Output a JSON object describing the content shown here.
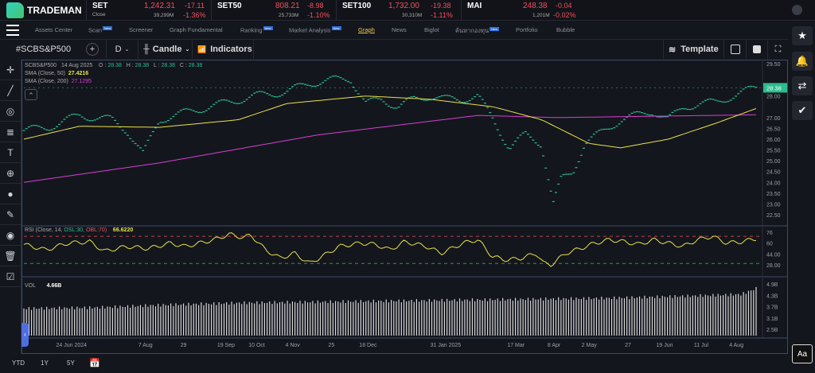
{
  "app": {
    "name": "TRADEMAN"
  },
  "tickers": [
    {
      "name": "SET",
      "sub": "Close",
      "price": "1,242.31",
      "change": "-17.11",
      "volume": "39,299M",
      "pct": "-1.36%"
    },
    {
      "name": "SET50",
      "price": "808.21",
      "change": "-8.98",
      "volume": "25,733M",
      "pct": "-1.10%"
    },
    {
      "name": "SET100",
      "price": "1,732.00",
      "change": "-19.38",
      "volume": "30,310M",
      "pct": "-1.11%"
    },
    {
      "name": "MAI",
      "price": "248.38",
      "change": "-0.04",
      "volume": "1,201M",
      "pct": "-0.02%"
    }
  ],
  "nav": [
    {
      "label": "Assets Center"
    },
    {
      "label": "Scan",
      "badge": "New"
    },
    {
      "label": "Screener"
    },
    {
      "label": "Graph Fundamental"
    },
    {
      "label": "Ranking",
      "badge": "New"
    },
    {
      "label": "Market Analysis",
      "badge": "New"
    },
    {
      "label": "Graph",
      "active": true
    },
    {
      "label": "News"
    },
    {
      "label": "Biglot"
    },
    {
      "label": "ค้นหากองทุน",
      "badge": "New"
    },
    {
      "label": "Portfolio"
    },
    {
      "label": "Bubble"
    }
  ],
  "toolbar": {
    "symbol": "#SCBS&P500",
    "interval": "D",
    "chart_type": "Candle",
    "indicators": "Indicators",
    "template": "Template"
  },
  "legend": {
    "symbol": "SCBS&P500",
    "date": "14 Aug 2025",
    "o_label": "O :",
    "o": "28.38",
    "h_label": "H :",
    "h": "28.38",
    "l_label": "L :",
    "l": "28.38",
    "c_label": "C :",
    "c": "28.38",
    "sma50_label": "SMA  (Close, 50)",
    "sma50": "27.4216",
    "sma200_label": "SMA  (Close, 200)",
    "sma200": "27.1295",
    "rsi_label": "RSI  (Close, 14,",
    "rsi_osl": "OSL:30,",
    "rsi_obl": "OBL:70)",
    "rsi": "66.6220",
    "vol_label": "VOL",
    "vol": "4.66B"
  },
  "bottom": {
    "ranges": [
      "YTD",
      "1Y",
      "5Y"
    ]
  },
  "colors": {
    "price": "#2bbd8f",
    "sma50": "#e8e24a",
    "sma200": "#d63fd0",
    "rsi": "#e8e24a",
    "up": "#2bbd8f",
    "down": "#f0505e"
  },
  "chart_data": {
    "type": "line",
    "price_axis": {
      "ticks": [
        "29.50",
        "28.00",
        "27.00",
        "26.50",
        "26.00",
        "25.50",
        "25.00",
        "24.50",
        "24.00",
        "23.50",
        "23.00",
        "22.50"
      ],
      "range": [
        22.5,
        29.5
      ],
      "last": "28.38"
    },
    "rsi_axis": {
      "ticks": [
        "76",
        "60",
        "44.00",
        "28.00"
      ],
      "range": [
        20,
        80
      ],
      "ob": 70,
      "os": 30
    },
    "vol_axis": {
      "ticks": [
        "4.9B",
        "4.3B",
        "3.7B",
        "3.1B",
        "2.5B"
      ],
      "range": [
        2.2,
        5.0
      ]
    },
    "x_ticks": [
      {
        "t": 6.5,
        "label": "24 Jun 2024"
      },
      {
        "t": 16.6,
        "label": "7 Aug"
      },
      {
        "t": 21.8,
        "label": "29"
      },
      {
        "t": 27.6,
        "label": "19 Sep"
      },
      {
        "t": 31.8,
        "label": "10 Oct"
      },
      {
        "t": 36.7,
        "label": "4 Nov"
      },
      {
        "t": 42,
        "label": "25"
      },
      {
        "t": 47,
        "label": "18 Dec"
      },
      {
        "t": 57.6,
        "label": "31 Jan 2025"
      },
      {
        "t": 67.2,
        "label": "17 Mar"
      },
      {
        "t": 72.4,
        "label": "8 Apr"
      },
      {
        "t": 77.2,
        "label": "2 May"
      },
      {
        "t": 82.5,
        "label": "27"
      },
      {
        "t": 87.5,
        "label": "19 Jun"
      },
      {
        "t": 92.5,
        "label": "11 Jul"
      },
      {
        "t": 97.3,
        "label": "4 Aug"
      }
    ],
    "close": [
      [
        0,
        26.4
      ],
      [
        3.3,
        26.55
      ],
      [
        7.6,
        27.1
      ],
      [
        12,
        26.9
      ],
      [
        14.1,
        26.4
      ],
      [
        16.3,
        25.3
      ],
      [
        18.5,
        26.9
      ],
      [
        22.8,
        27.3
      ],
      [
        27.2,
        27.65
      ],
      [
        31.5,
        28.0
      ],
      [
        35.9,
        28.2
      ],
      [
        39.1,
        28.6
      ],
      [
        42.4,
        28.75
      ],
      [
        44.6,
        28.8
      ],
      [
        46.7,
        27.65
      ],
      [
        48.9,
        27.85
      ],
      [
        51.1,
        27.5
      ],
      [
        53.3,
        27.85
      ],
      [
        55.4,
        28.0
      ],
      [
        57.6,
        27.85
      ],
      [
        59.8,
        27.85
      ],
      [
        62,
        28.0
      ],
      [
        64.1,
        26.9
      ],
      [
        66.3,
        25.6
      ],
      [
        68.5,
        26.2
      ],
      [
        70.7,
        25.8
      ],
      [
        72.3,
        23.0
      ],
      [
        73.4,
        24.15
      ],
      [
        75,
        24.5
      ],
      [
        76.6,
        25.8
      ],
      [
        79.3,
        26.4
      ],
      [
        81.5,
        26.9
      ],
      [
        83.7,
        27.1
      ],
      [
        85.9,
        27.3
      ],
      [
        88,
        26.9
      ],
      [
        90.2,
        27.5
      ],
      [
        92.4,
        27.65
      ],
      [
        94.6,
        27.7
      ],
      [
        96.7,
        28.0
      ],
      [
        100,
        28.38
      ]
    ],
    "sma50": [
      [
        0,
        26.0
      ],
      [
        7.6,
        26.6
      ],
      [
        18.5,
        26.55
      ],
      [
        29.3,
        26.9
      ],
      [
        35.9,
        27.65
      ],
      [
        46.7,
        28.0
      ],
      [
        55.4,
        27.85
      ],
      [
        64.1,
        27.5
      ],
      [
        70.7,
        26.9
      ],
      [
        77.2,
        25.8
      ],
      [
        81.5,
        25.6
      ],
      [
        88,
        26.0
      ],
      [
        94.6,
        26.75
      ],
      [
        100,
        27.42
      ]
    ],
    "sma200": [
      [
        0,
        24.0
      ],
      [
        18.5,
        24.9
      ],
      [
        40.2,
        26.2
      ],
      [
        62,
        27.1
      ],
      [
        72.8,
        27.0
      ],
      [
        100,
        27.13
      ]
    ],
    "rsi": [
      [
        0,
        58
      ],
      [
        3,
        50
      ],
      [
        6,
        60
      ],
      [
        9,
        62
      ],
      [
        11,
        48
      ],
      [
        14,
        55
      ],
      [
        17,
        52
      ],
      [
        20,
        60
      ],
      [
        22,
        55
      ],
      [
        26,
        65
      ],
      [
        28,
        73
      ],
      [
        30,
        68
      ],
      [
        31,
        72
      ],
      [
        33,
        50
      ],
      [
        35,
        38
      ],
      [
        37,
        45
      ],
      [
        39,
        30
      ],
      [
        41,
        42
      ],
      [
        43,
        55
      ],
      [
        46,
        60
      ],
      [
        48,
        58
      ],
      [
        50,
        50
      ],
      [
        52,
        62
      ],
      [
        55,
        55
      ],
      [
        57,
        45
      ],
      [
        60,
        60
      ],
      [
        62,
        65
      ],
      [
        64,
        40
      ],
      [
        66,
        35
      ],
      [
        68,
        38
      ],
      [
        70,
        45
      ],
      [
        71,
        30
      ],
      [
        72,
        28
      ],
      [
        74,
        45
      ],
      [
        76,
        52
      ],
      [
        78,
        60
      ],
      [
        80,
        65
      ],
      [
        82,
        62
      ],
      [
        84,
        58
      ],
      [
        86,
        65
      ],
      [
        88,
        60
      ],
      [
        90,
        55
      ],
      [
        92,
        65
      ],
      [
        94,
        70
      ],
      [
        96,
        60
      ],
      [
        98,
        62
      ],
      [
        100,
        66.6
      ]
    ],
    "volume": [
      [
        0,
        3.6
      ],
      [
        10,
        3.65
      ],
      [
        20,
        3.8
      ],
      [
        30,
        3.9
      ],
      [
        40,
        3.95
      ],
      [
        50,
        4.0
      ],
      [
        60,
        4.05
      ],
      [
        70,
        4.1
      ],
      [
        80,
        4.15
      ],
      [
        90,
        4.25
      ],
      [
        98,
        4.35
      ],
      [
        100,
        4.66
      ]
    ]
  }
}
